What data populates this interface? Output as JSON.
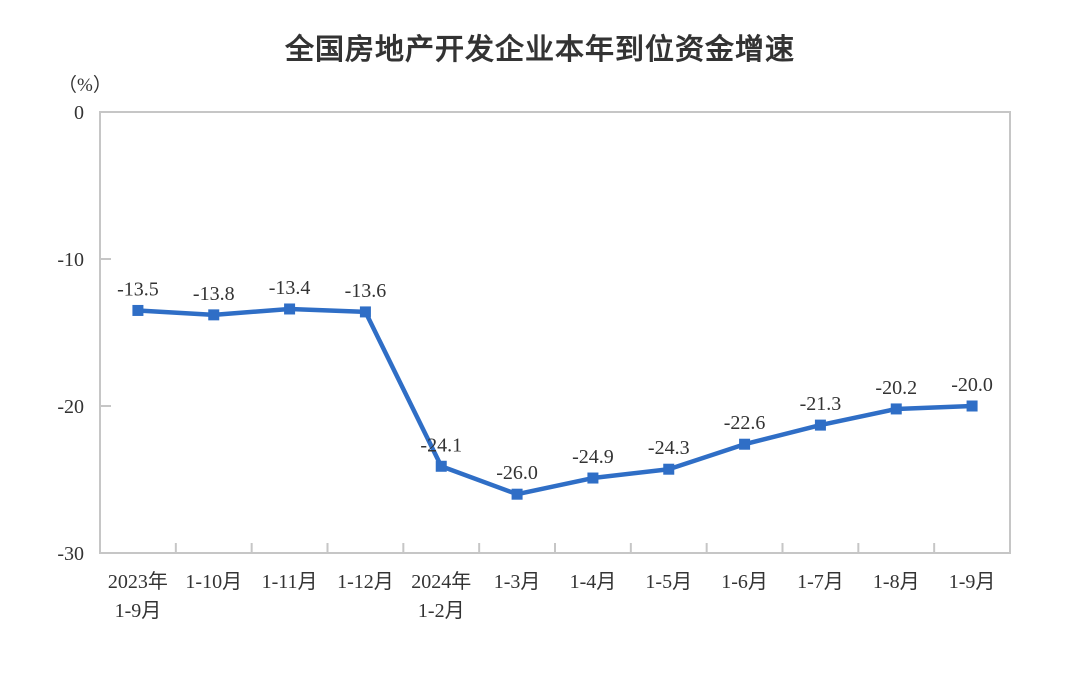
{
  "page": {
    "background": "#ffffff"
  },
  "chart_data": {
    "type": "line",
    "title": "全国房地产开发企业本年到位资金增速",
    "unit_label": "（%）",
    "categories": [
      "2023年\n1-9月",
      "1-10月",
      "1-11月",
      "1-12月",
      "2024年\n1-2月",
      "1-3月",
      "1-4月",
      "1-5月",
      "1-6月",
      "1-7月",
      "1-8月",
      "1-9月"
    ],
    "values": [
      -13.5,
      -13.8,
      -13.4,
      -13.6,
      -24.1,
      -26.0,
      -24.9,
      -24.3,
      -22.6,
      -21.3,
      -20.2,
      -20.0
    ],
    "data_labels": [
      "-13.5",
      "-13.8",
      "-13.4",
      "-13.6",
      "-24.1",
      "-26.0",
      "-24.9",
      "-24.3",
      "-22.6",
      "-21.3",
      "-20.2",
      "-20.0"
    ],
    "ylabel": "",
    "xlabel": "",
    "y_ticks": [
      0,
      -10,
      -20,
      -30
    ],
    "ylim": [
      -30,
      0
    ],
    "grid": false,
    "legend": "none",
    "marker": "square",
    "colors": {
      "line": "#2F6EC6",
      "text": "#333333",
      "axis": "#C6C6C6"
    }
  }
}
